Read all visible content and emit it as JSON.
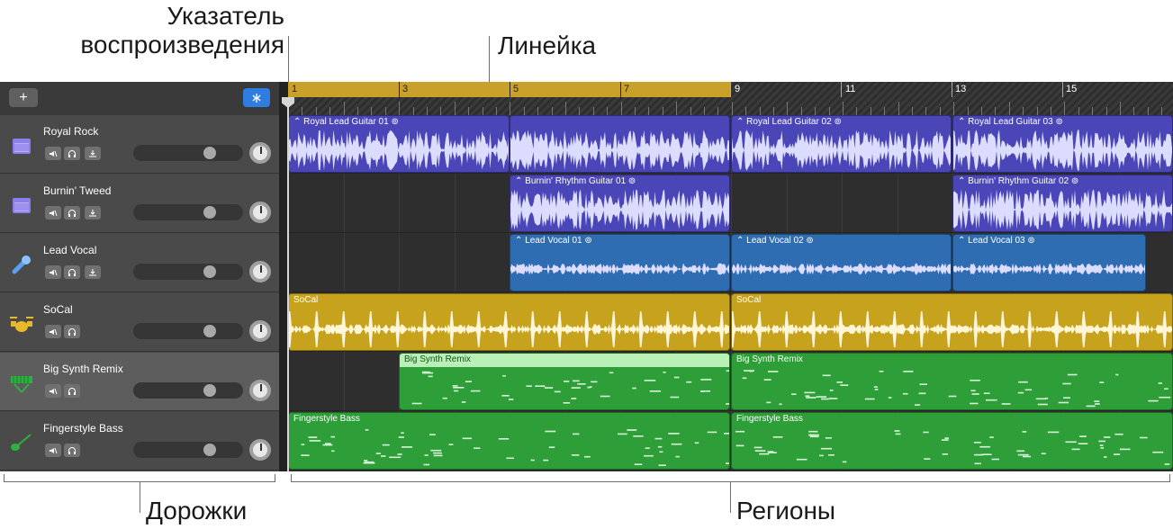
{
  "callouts": {
    "playhead": "Указатель\nвоспроизведения",
    "ruler": "Линейка",
    "tracks": "Дорожки",
    "regions": "Регионы"
  },
  "toolbar": {
    "add_label": "+",
    "add_icon": "plus-icon",
    "smart_icon": "smart-controls-icon",
    "accent": "#2f7de1"
  },
  "ruler": {
    "numbers": [
      "1",
      "3",
      "5",
      "7",
      "9",
      "11",
      "13",
      "15"
    ],
    "cycle_color": "#c8a02a"
  },
  "tracks": [
    {
      "name": "Royal Rock",
      "icon": "amp-icon",
      "buttons": [
        "mute",
        "headphones",
        "record-enable"
      ]
    },
    {
      "name": "Burnin' Tweed",
      "icon": "amp-icon",
      "buttons": [
        "mute",
        "headphones",
        "record-enable"
      ]
    },
    {
      "name": "Lead Vocal",
      "icon": "microphone-icon",
      "buttons": [
        "mute",
        "headphones",
        "record-enable"
      ]
    },
    {
      "name": "SoCal",
      "icon": "drum-kit-icon",
      "buttons": [
        "mute",
        "headphones"
      ]
    },
    {
      "name": "Big Synth Remix",
      "icon": "keyboard-icon",
      "buttons": [
        "mute",
        "headphones"
      ]
    },
    {
      "name": "Fingerstyle Bass",
      "icon": "bass-guitar-icon",
      "buttons": [
        "mute",
        "headphones"
      ]
    }
  ],
  "regions": {
    "royal_lead_1": "Royal Lead Guitar 01",
    "royal_lead_2": "Royal Lead Guitar 02",
    "royal_lead_3": "Royal Lead Guitar 03",
    "burnin_1": "Burnin' Rhythm Guitar 01",
    "burnin_2": "Burnin' Rhythm Guitar 02",
    "vocal_1": "Lead Vocal 01",
    "vocal_2": "Lead Vocal 02",
    "vocal_3": "Lead Vocal 03",
    "socal_1": "SoCal",
    "socal_2": "SoCal",
    "synth_1": "Big Synth Remix",
    "synth_2": "Big Synth Remix",
    "bass_1": "Fingerstyle Bass",
    "bass_2": "Fingerstyle Bass"
  },
  "colors": {
    "audio_region": "#4b46b8",
    "vocal_region": "#2f6db2",
    "drum_region": "#c7a21d",
    "midi_region": "#2e9e38"
  }
}
